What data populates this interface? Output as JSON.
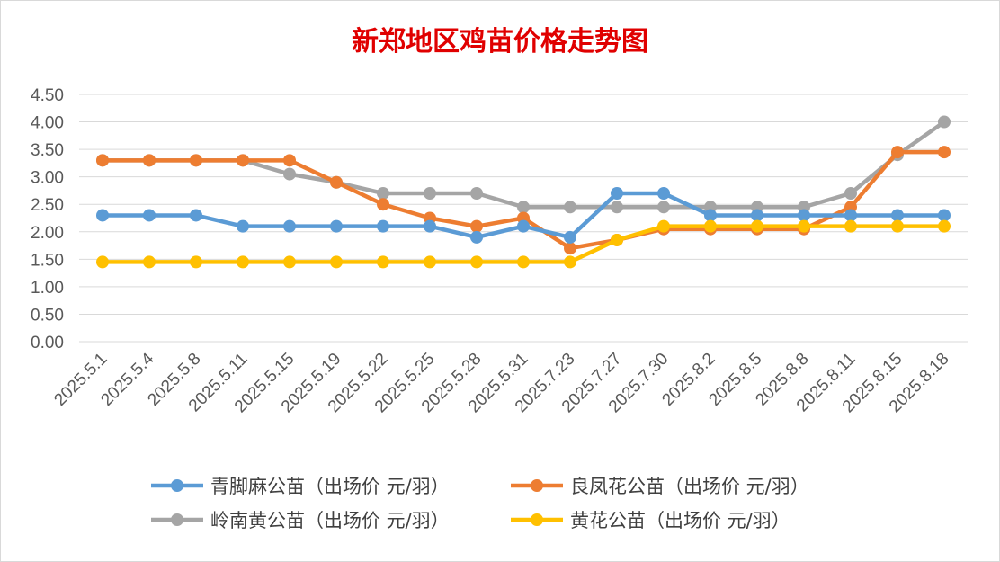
{
  "chart_data": {
    "type": "line",
    "title": "新郑地区鸡苗价格走势图",
    "xlabel": "",
    "ylabel": "",
    "ylim": [
      0,
      4.5
    ],
    "yticks": [
      "0.00",
      "0.50",
      "1.00",
      "1.50",
      "2.00",
      "2.50",
      "3.00",
      "3.50",
      "4.00",
      "4.50"
    ],
    "grid": true,
    "legend_position": "bottom",
    "categories": [
      "2025.5.1",
      "2025.5.4",
      "2025.5.8",
      "2025.5.11",
      "2025.5.15",
      "2025.5.19",
      "2025.5.22",
      "2025.5.25",
      "2025.5.28",
      "2025.5.31",
      "2025.7.23",
      "2025.7.27",
      "2025.7.30",
      "2025.8.2",
      "2025.8.5",
      "2025.8.8",
      "2025.8.11",
      "2025.8.15",
      "2025.8.18"
    ],
    "series": [
      {
        "name": "青脚麻公苗（出场价 元/羽）",
        "color": "#5b9bd5",
        "values": [
          2.3,
          2.3,
          2.3,
          2.1,
          2.1,
          2.1,
          2.1,
          2.1,
          1.9,
          2.1,
          1.9,
          2.7,
          2.7,
          2.3,
          2.3,
          2.3,
          2.3,
          2.3,
          2.3
        ]
      },
      {
        "name": "良凤花公苗（出场价 元/羽）",
        "color": "#ed7d31",
        "values": [
          3.3,
          3.3,
          3.3,
          3.3,
          3.3,
          2.9,
          2.5,
          2.25,
          2.1,
          2.25,
          1.7,
          1.85,
          2.05,
          2.05,
          2.05,
          2.05,
          2.45,
          3.45,
          3.45
        ]
      },
      {
        "name": "岭南黄公苗（出场价 元/羽）",
        "color": "#a5a5a5",
        "values": [
          3.3,
          3.3,
          3.3,
          3.3,
          3.05,
          2.9,
          2.7,
          2.7,
          2.7,
          2.45,
          2.45,
          2.45,
          2.45,
          2.45,
          2.45,
          2.45,
          2.7,
          3.4,
          4.0
        ]
      },
      {
        "name": "黄花公苗（出场价 元/羽）",
        "color": "#ffc000",
        "values": [
          1.45,
          1.45,
          1.45,
          1.45,
          1.45,
          1.45,
          1.45,
          1.45,
          1.45,
          1.45,
          1.45,
          1.85,
          2.1,
          2.1,
          2.1,
          2.1,
          2.1,
          2.1,
          2.1
        ]
      }
    ]
  }
}
